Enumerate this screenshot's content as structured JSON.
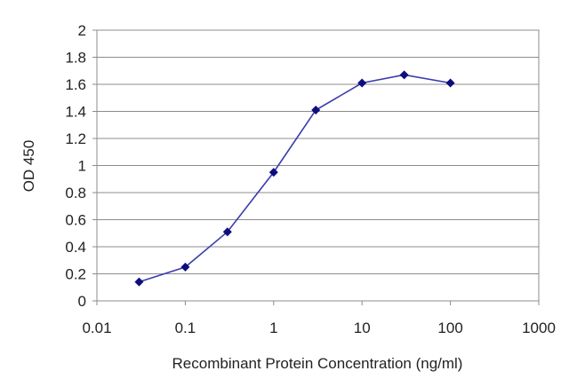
{
  "chart_data": {
    "type": "line",
    "xlabel": "Recombinant Protein Concentration (ng/ml)",
    "ylabel": "OD 450",
    "x_scale": "log",
    "xlim": [
      0.01,
      1000
    ],
    "ylim": [
      0,
      2
    ],
    "x_ticks": [
      "0.01",
      "0.1",
      "1",
      "10",
      "100",
      "1000"
    ],
    "y_ticks": [
      "0",
      "0.2",
      "0.4",
      "0.6",
      "0.8",
      "1",
      "1.2",
      "1.4",
      "1.6",
      "1.8",
      "2"
    ],
    "grid": "horizontal",
    "line_color": "#3b3bb0",
    "marker_color": "#0d0d80",
    "series": [
      {
        "x": [
          0.03,
          0.1,
          0.3,
          1,
          3,
          10,
          30,
          100
        ],
        "y": [
          0.14,
          0.25,
          0.51,
          0.95,
          1.41,
          1.61,
          1.67,
          1.61
        ]
      }
    ]
  }
}
